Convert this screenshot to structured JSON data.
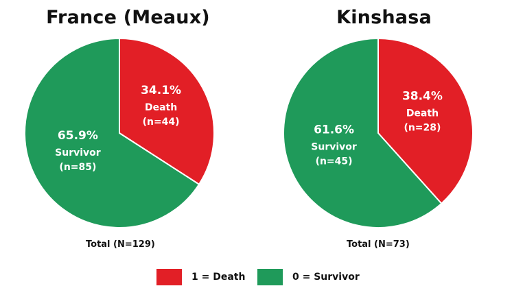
{
  "colors": {
    "death": "#e21f26",
    "survivor": "#1f9a5a"
  },
  "chart_data": [
    {
      "type": "pie",
      "title": "France (Meaux)",
      "total_label": "Total (N=129)",
      "slices": [
        {
          "name": "Death",
          "category": "1 = Death",
          "value": 44,
          "percent": 34.1,
          "percent_label": "34.1%",
          "name_label": "Death",
          "n_label": "(n=44)",
          "color": "#e21f26"
        },
        {
          "name": "Survivor",
          "category": "0 = Survivor",
          "value": 85,
          "percent": 65.9,
          "percent_label": "65.9%",
          "name_label": "Survivor",
          "n_label": "(n=85)",
          "color": "#1f9a5a"
        }
      ]
    },
    {
      "type": "pie",
      "title": "Kinshasa",
      "total_label": "Total (N=73)",
      "slices": [
        {
          "name": "Death",
          "category": "1 = Death",
          "value": 28,
          "percent": 38.4,
          "percent_label": "38.4%",
          "name_label": "Death",
          "n_label": "(n=28)",
          "color": "#e21f26"
        },
        {
          "name": "Survivor",
          "category": "0 = Survivor",
          "value": 45,
          "percent": 61.6,
          "percent_label": "61.6%",
          "name_label": "Survivor",
          "n_label": "(n=45)",
          "color": "#1f9a5a"
        }
      ]
    }
  ],
  "legend": {
    "items": [
      {
        "label": "1 = Death",
        "color": "#e21f26"
      },
      {
        "label": "0 = Survivor",
        "color": "#1f9a5a"
      }
    ]
  }
}
